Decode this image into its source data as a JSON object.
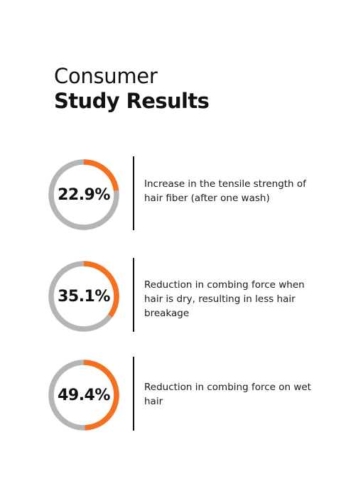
{
  "heading": {
    "line1": "Consumer",
    "line2": "Study Results"
  },
  "colors": {
    "accent": "#f5701f",
    "track": "#b5b5b5",
    "text": "#111111"
  },
  "stats": [
    {
      "value_label": "22.9%",
      "value": 22.9,
      "description": "Increase in the tensile strength of hair fiber (after one wash)"
    },
    {
      "value_label": "35.1%",
      "value": 35.1,
      "description": "Reduction in combing force when hair is dry, resulting in less hair breakage"
    },
    {
      "value_label": "49.4%",
      "value": 49.4,
      "description": "Reduction in combing force on wet hair"
    }
  ]
}
